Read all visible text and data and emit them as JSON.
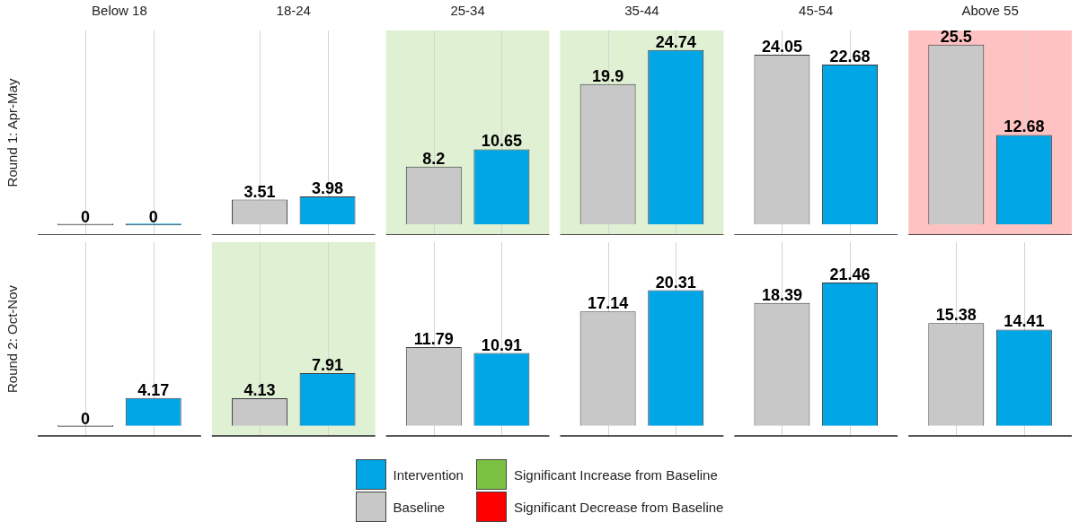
{
  "chart_data": [
    {
      "type": "bar",
      "ylabel": "Round 1: Apr-May",
      "categories": [
        "Below 18",
        "18-24",
        "25-34",
        "35-44",
        "45-54",
        "Above 55"
      ],
      "series": [
        {
          "name": "Baseline",
          "color": "#c8c8c8",
          "values": [
            0,
            3.51,
            8.2,
            19.9,
            24.05,
            25.5
          ]
        },
        {
          "name": "Intervention",
          "color": "#00a6e6",
          "values": [
            0,
            3.98,
            10.65,
            24.74,
            22.68,
            12.68
          ]
        }
      ],
      "bands": [
        {
          "axis": "x",
          "from": "25-34",
          "to": "25-34",
          "label": "Significant Increase from Baseline",
          "color": "#7cc242"
        },
        {
          "axis": "x",
          "from": "35-44",
          "to": "35-44",
          "color": "#7cc242"
        },
        {
          "axis": "x",
          "from": "Above 55",
          "to": "Above 55",
          "label": "Significant Decrease from Baseline",
          "color": "#ff0000"
        }
      ],
      "ylim": [
        -1.5,
        27.5
      ],
      "data_labels": true,
      "grid": "x",
      "tick_labels": "x",
      "legend": "bottom"
    },
    {
      "type": "bar",
      "ylabel": "Round 2: Oct-Nov",
      "categories": [
        "Below 18",
        "18-24",
        "25-34",
        "35-44",
        "45-54",
        "Above 55"
      ],
      "series": [
        {
          "color": "#c8c8c8",
          "values": [
            0,
            4.13,
            11.79,
            17.14,
            18.39,
            15.38
          ]
        },
        {
          "color": "#00a6e6",
          "values": [
            4.17,
            7.91,
            10.91,
            20.31,
            21.46,
            14.41
          ]
        }
      ],
      "bands": [
        {
          "axis": "x",
          "from": "18-24",
          "to": "18-24",
          "color": "#7cc242"
        }
      ],
      "ylim": [
        -1.5,
        27.5
      ],
      "data_labels": true,
      "grid": "x",
      "tick_labels": false
    }
  ]
}
